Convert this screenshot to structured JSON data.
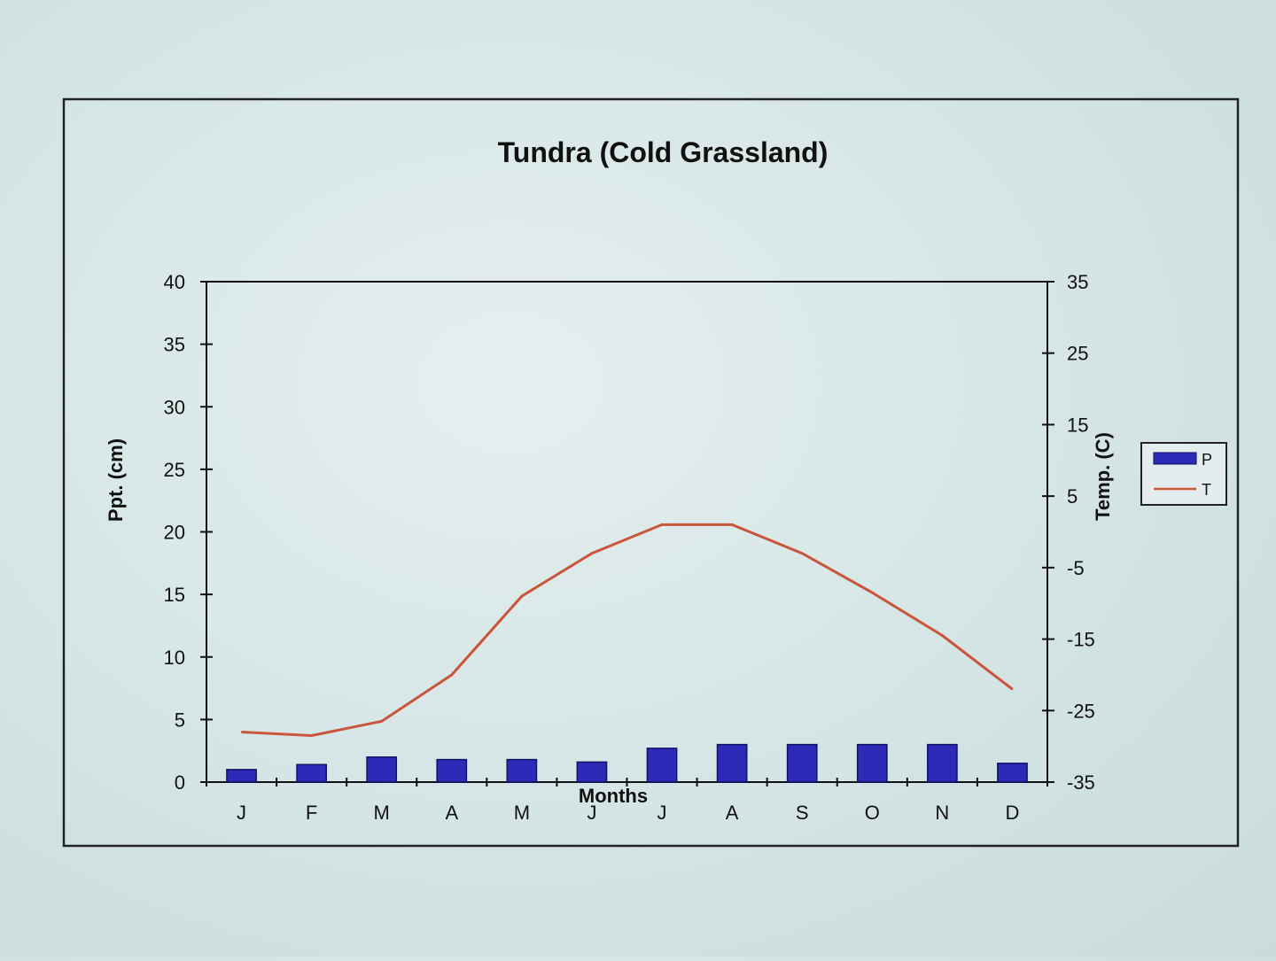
{
  "colors": {
    "bar": "#2b2bb8",
    "bar_edge": "#111166",
    "line": "#c8553c",
    "axis": "#111111",
    "frame": "#222222"
  },
  "chart_data": {
    "type": "bar",
    "title": "Tundra  (Cold Grassland)",
    "xlabel": "Months",
    "ylabel": "Ppt. (cm)",
    "y2label": "Temp. (C)",
    "categories": [
      "J",
      "F",
      "M",
      "A",
      "M",
      "J",
      "J",
      "A",
      "S",
      "O",
      "N",
      "D"
    ],
    "ylim": [
      0,
      40
    ],
    "yticks": [
      "0",
      "5",
      "10",
      "15",
      "20",
      "25",
      "30",
      "35",
      "40"
    ],
    "y2lim": [
      -35,
      35
    ],
    "y2ticks": [
      "-35",
      "-25",
      "-15",
      "-5",
      "5",
      "15",
      "25",
      "35"
    ],
    "series": [
      {
        "name": "P",
        "type": "bar",
        "axis": "left",
        "values": [
          1.0,
          1.4,
          2.0,
          1.8,
          1.8,
          1.6,
          2.7,
          3.0,
          3.0,
          3.0,
          3.0,
          1.5
        ]
      },
      {
        "name": "T",
        "type": "line",
        "axis": "right",
        "values": [
          -28,
          -28.5,
          -26.5,
          -20,
          -9,
          -3,
          1,
          1,
          -3,
          -8.5,
          -14.5,
          -22
        ]
      }
    ],
    "legend": "right",
    "grid": false
  }
}
